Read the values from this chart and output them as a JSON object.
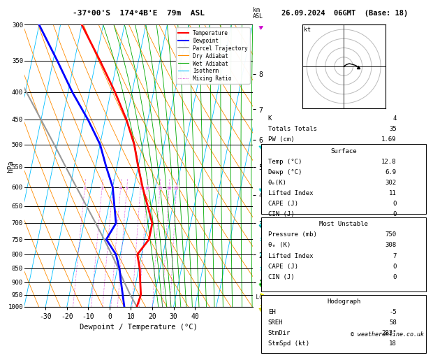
{
  "title_left": "-37°00'S  174°4B'E  79m  ASL",
  "title_right": "26.09.2024  06GMT  (Base: 18)",
  "xlabel": "Dewpoint / Temperature (°C)",
  "ylabel_left": "hPa",
  "copyright": "© weatheronline.co.uk",
  "bg_color": "#ffffff",
  "pressure_levels": [
    300,
    350,
    400,
    450,
    500,
    550,
    600,
    650,
    700,
    750,
    800,
    850,
    900,
    950,
    1000
  ],
  "temp_ticks": [
    -30,
    -20,
    -10,
    0,
    10,
    20,
    30,
    40
  ],
  "isotherm_color": "#00bfff",
  "dry_adiabat_color": "#ff8c00",
  "wet_adiabat_color": "#00aa00",
  "mixing_ratio_color": "#cc00cc",
  "temp_color": "#ff0000",
  "dewpoint_color": "#0000ff",
  "parcel_color": "#999999",
  "temperature_data": {
    "pressure": [
      1000,
      950,
      900,
      850,
      800,
      750,
      700,
      600,
      550,
      500,
      450,
      400,
      350,
      300
    ],
    "temp": [
      12.8,
      13.5,
      12.0,
      10.5,
      8.0,
      12.0,
      12.0,
      4.0,
      0.0,
      -4.0,
      -10.0,
      -18.0,
      -28.0,
      -40.0
    ],
    "dewpoint": [
      6.9,
      5.0,
      3.0,
      1.0,
      -2.0,
      -8.0,
      -5.0,
      -10.0,
      -15.0,
      -20.0,
      -28.0,
      -38.0,
      -48.0,
      -60.0
    ]
  },
  "parcel_data": {
    "pressure": [
      1000,
      950,
      900,
      850,
      800,
      750,
      700,
      650,
      600,
      550,
      500,
      450,
      400,
      350,
      300
    ],
    "temp": [
      12.8,
      8.5,
      4.5,
      0.5,
      -4.0,
      -9.0,
      -14.5,
      -20.5,
      -27.0,
      -34.0,
      -41.5,
      -50.0,
      -59.5,
      -70.0,
      -82.0
    ]
  },
  "mixing_ratios": [
    1,
    2,
    3,
    4,
    5,
    8,
    10,
    15,
    20,
    25
  ],
  "km_ticks": {
    "values": [
      1,
      2,
      3,
      4,
      5,
      6,
      7,
      8
    ],
    "pressures": [
      900,
      800,
      700,
      620,
      550,
      490,
      430,
      370
    ]
  },
  "lcl_pressure": 960,
  "sounding_info": {
    "K": 4,
    "Totals_Totals": 35,
    "PW_cm": 1.69,
    "Surface_Temp": 12.8,
    "Surface_Dewp": 6.9,
    "theta_e_K": 302,
    "Lifted_Index": 11,
    "CAPE_J": 0,
    "CIN_J": 0,
    "MU_Pressure_mb": 750,
    "MU_theta_e_K": 308,
    "MU_Lifted_Index": 7,
    "MU_CAPE_J": 0,
    "MU_CIN_J": 0,
    "Hodograph_EH": -5,
    "Hodograph_SREH": 58,
    "StmDir": "283°",
    "StmSpd_kt": 18
  },
  "hodograph": {
    "u": [
      0,
      3,
      6,
      10,
      13,
      16
    ],
    "v": [
      0,
      2,
      3,
      2,
      1,
      -1
    ],
    "circles": [
      10,
      20,
      30,
      40
    ]
  },
  "wind_arrows": {
    "pressures": [
      1000,
      950,
      900,
      850,
      800,
      750,
      700
    ],
    "colors": [
      "#ffff00",
      "#ffff00",
      "#00ff00",
      "#00ffff",
      "#00ffff",
      "#00ffff",
      "#00ffff"
    ]
  }
}
